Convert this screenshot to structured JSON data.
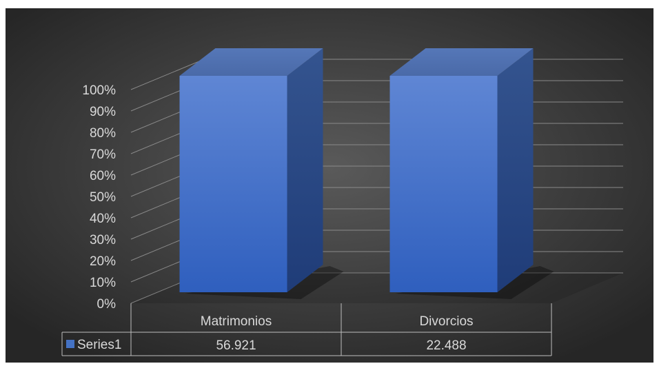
{
  "chart_data": {
    "type": "bar",
    "variant": "3d-100%-stacked-column",
    "categories": [
      "Matrimonios",
      "Divorcios"
    ],
    "series": [
      {
        "name": "Series1",
        "values": [
          56.921,
          22.488
        ],
        "value_labels": [
          "56.921",
          "22.488"
        ],
        "color": "#4472c4"
      }
    ],
    "y_ticks": [
      "0%",
      "10%",
      "20%",
      "30%",
      "40%",
      "50%",
      "60%",
      "70%",
      "80%",
      "90%",
      "100%"
    ],
    "ylim": [
      0,
      1
    ],
    "data_table": true,
    "legend_key_in_table": true,
    "background": "#3a3a3a",
    "gridlines": true
  }
}
